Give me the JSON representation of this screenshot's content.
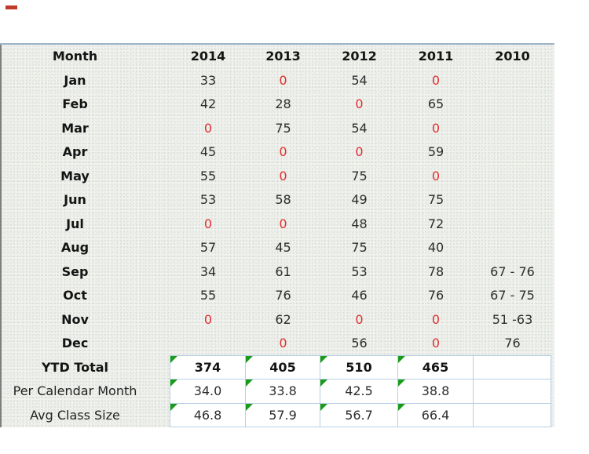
{
  "artifact": {
    "red_dash_color": "#c0392b"
  },
  "decor": {
    "top_line_color": "#9db3c8",
    "left_line_color": "#7f7f7f",
    "sheet_background": "#f1f2ed",
    "cell_border_color": "#b7cfe3",
    "cell_background": "#ffffff",
    "zero_value_color": "#e12f2f",
    "text_color": "#2d2d2d",
    "formula_triangle_color": "#1a9c1a"
  },
  "table": {
    "columns": [
      "Month",
      "2014",
      "2013",
      "2012",
      "2011",
      "2010"
    ],
    "rows": [
      {
        "label": "Jan",
        "values": [
          "33",
          "0",
          "54",
          "0",
          ""
        ]
      },
      {
        "label": "Feb",
        "values": [
          "42",
          "28",
          "0",
          "65",
          ""
        ]
      },
      {
        "label": "Mar",
        "values": [
          "0",
          "75",
          "54",
          "0",
          ""
        ]
      },
      {
        "label": "Apr",
        "values": [
          "45",
          "0",
          "0",
          "59",
          ""
        ]
      },
      {
        "label": "May",
        "values": [
          "55",
          "0",
          "75",
          "0",
          ""
        ]
      },
      {
        "label": "Jun",
        "values": [
          "53",
          "58",
          "49",
          "75",
          ""
        ]
      },
      {
        "label": "Jul",
        "values": [
          "0",
          "0",
          "48",
          "72",
          ""
        ]
      },
      {
        "label": "Aug",
        "values": [
          "57",
          "45",
          "75",
          "40",
          ""
        ]
      },
      {
        "label": "Sep",
        "values": [
          "34",
          "61",
          "53",
          "78",
          "67 - 76"
        ]
      },
      {
        "label": "Oct",
        "values": [
          "55",
          "76",
          "46",
          "76",
          "67 - 75"
        ]
      },
      {
        "label": "Nov",
        "values": [
          "0",
          "62",
          "0",
          "0",
          "51 -63"
        ]
      },
      {
        "label": "Dec",
        "values": [
          "",
          "0",
          "56",
          "0",
          "76"
        ]
      }
    ],
    "summary_rows": [
      {
        "label": "YTD Total",
        "bold": true,
        "values": [
          "374",
          "405",
          "510",
          "465",
          ""
        ]
      },
      {
        "label": "Per Calendar Month",
        "bold": false,
        "values": [
          "34.0",
          "33.8",
          "42.5",
          "38.8",
          ""
        ]
      },
      {
        "label": "Avg Class Size",
        "bold": false,
        "values": [
          "46.8",
          "57.9",
          "56.7",
          "66.4",
          ""
        ]
      }
    ]
  }
}
